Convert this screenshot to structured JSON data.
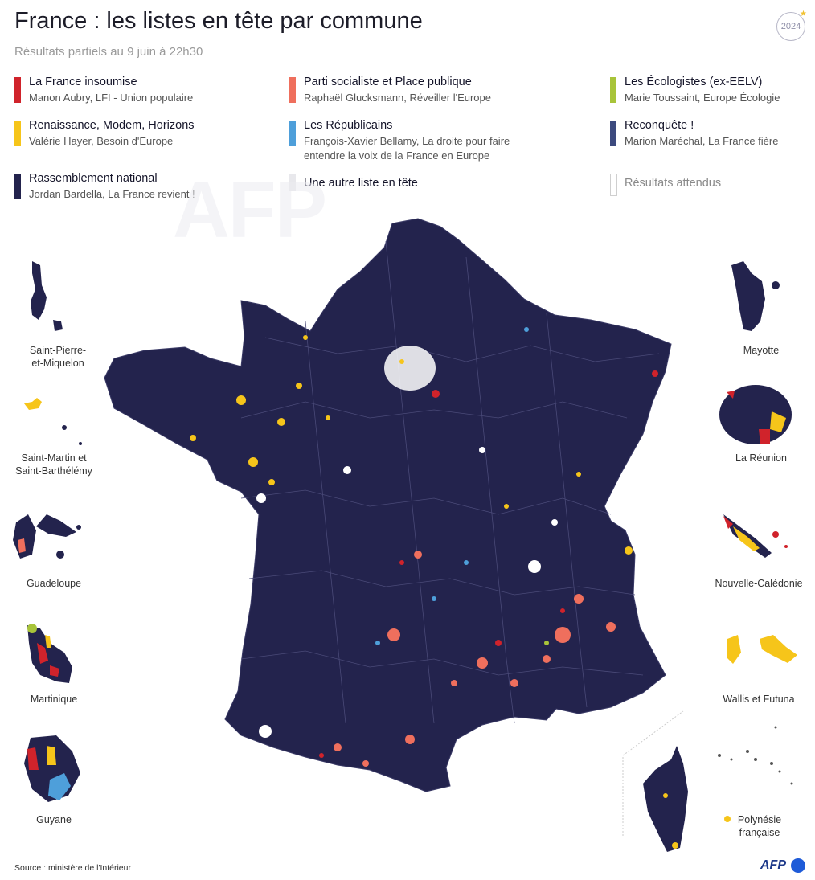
{
  "title": "France : les listes en tête par commune",
  "subtitle": "Résultats partiels au 9 juin à 22h30",
  "badge": "2024",
  "legend": [
    {
      "name": "La France insoumise",
      "sub": "Manon Aubry, LFI - Union populaire",
      "color": "#d0232b"
    },
    {
      "name": "Parti socialiste et Place publique",
      "sub": "Raphaël Glucksmann, Réveiller l'Europe",
      "color": "#ef6f5d"
    },
    {
      "name": "Les Écologistes (ex-EELV)",
      "sub": "Marie Toussaint, Europe Écologie",
      "color": "#a8c43a"
    },
    {
      "name": "Renaissance, Modem, Horizons",
      "sub": "Valérie Hayer, Besoin d'Europe",
      "color": "#f6c51a"
    },
    {
      "name": "Les Républicains",
      "sub": "François-Xavier Bellamy, La droite pour faire",
      "sub2": "entendre la voix de la France en Europe",
      "color": "#4e9fda"
    },
    {
      "name": "Reconquête !",
      "sub": "Marion Maréchal, La France fière",
      "color": "#3c4a7e"
    },
    {
      "name": "Rassemblement national",
      "sub": "Jordan Bardella, La France revient !",
      "color": "#23234d"
    },
    {
      "name": "Une autre liste en tête",
      "sub": "",
      "color": "#e8e8ec"
    },
    {
      "name": "Résultats attendus",
      "sub": "",
      "color": "#ffffff"
    }
  ],
  "watermark": "AFP",
  "territories": {
    "spm": "Saint-Pierre-\net-Miquelon",
    "smsb": "Saint-Martin et\nSaint-Barthélémy",
    "guadeloupe": "Guadeloupe",
    "martinique": "Martinique",
    "guyane": "Guyane",
    "mayotte": "Mayotte",
    "reunion": "La Réunion",
    "ncal": "Nouvelle-Calédonie",
    "wallis": "Wallis et Futuna",
    "polynesie": "Polynésie\nfrançaise"
  },
  "source": "Source : ministère de l'Intérieur",
  "logo": "AFP",
  "colors": {
    "rn": "#23234d",
    "lfi": "#d0232b",
    "ps": "#ef6f5d",
    "eelv": "#a8c43a",
    "ren": "#f6c51a",
    "lr": "#4e9fda"
  }
}
